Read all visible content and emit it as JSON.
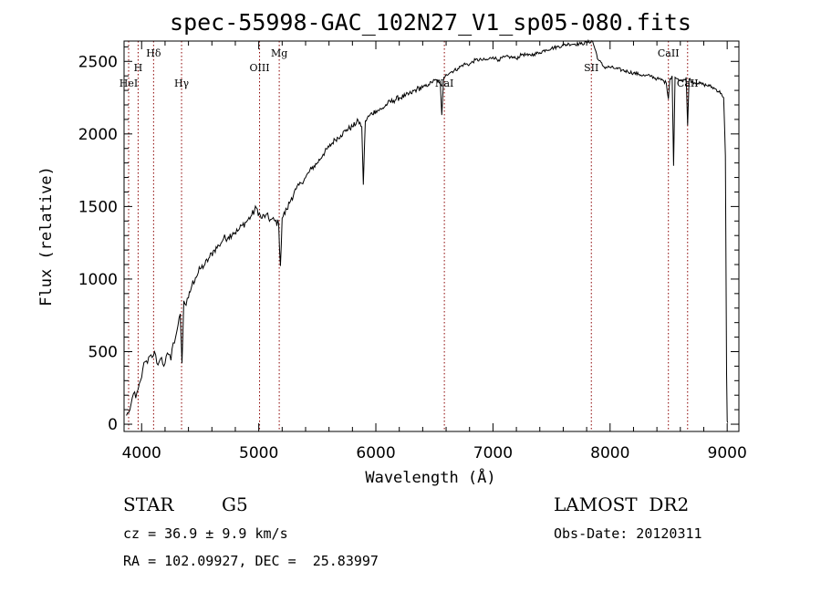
{
  "chart_data": {
    "type": "line",
    "title": "spec-55998-GAC_102N27_V1_sp05-080.fits",
    "xlabel": "Wavelength (Å)",
    "ylabel": "Flux (relative)",
    "xlim": [
      3850,
      9100
    ],
    "ylim": [
      -50,
      2640
    ],
    "x_ticks": [
      4000,
      5000,
      6000,
      7000,
      8000,
      9000
    ],
    "x_tick_labels": [
      "4000",
      "5000",
      "6000",
      "7000",
      "8000",
      "9000"
    ],
    "y_ticks": [
      0,
      500,
      1000,
      1500,
      2000,
      2500
    ],
    "y_tick_labels": [
      "0",
      "500",
      "1000",
      "1500",
      "2000",
      "2500"
    ],
    "series": [
      {
        "name": "spectrum",
        "x": [
          3870,
          3890,
          3910,
          3930,
          3950,
          3970,
          3990,
          4010,
          4030,
          4050,
          4070,
          4090,
          4110,
          4130,
          4150,
          4170,
          4190,
          4210,
          4230,
          4250,
          4270,
          4290,
          4310,
          4330,
          4345,
          4360,
          4380,
          4400,
          4430,
          4460,
          4500,
          4540,
          4580,
          4620,
          4660,
          4700,
          4740,
          4780,
          4820,
          4860,
          4900,
          4940,
          4980,
          5020,
          5060,
          5100,
          5140,
          5170,
          5185,
          5200,
          5240,
          5280,
          5320,
          5360,
          5400,
          5450,
          5500,
          5550,
          5600,
          5650,
          5700,
          5750,
          5800,
          5850,
          5880,
          5893,
          5910,
          5950,
          6000,
          6050,
          6100,
          6150,
          6200,
          6250,
          6300,
          6350,
          6400,
          6450,
          6500,
          6550,
          6563,
          6580,
          6600,
          6650,
          6700,
          6750,
          6800,
          6850,
          6900,
          6950,
          7000,
          7050,
          7100,
          7150,
          7200,
          7250,
          7300,
          7350,
          7400,
          7450,
          7500,
          7550,
          7600,
          7650,
          7700,
          7750,
          7800,
          7850,
          7900,
          7950,
          8000,
          8050,
          8100,
          8150,
          8200,
          8250,
          8300,
          8350,
          8400,
          8450,
          8480,
          8498,
          8510,
          8530,
          8542,
          8555,
          8580,
          8620,
          8650,
          8662,
          8675,
          8700,
          8750,
          8800,
          8850,
          8900,
          8950,
          8970,
          8985,
          8995,
          9000,
          9005
        ],
        "y": [
          60,
          80,
          140,
          210,
          180,
          240,
          300,
          380,
          430,
          420,
          470,
          460,
          500,
          420,
          430,
          460,
          400,
          470,
          480,
          440,
          560,
          600,
          680,
          760,
          420,
          850,
          820,
          870,
          960,
          1010,
          1070,
          1100,
          1150,
          1200,
          1230,
          1280,
          1290,
          1320,
          1330,
          1370,
          1400,
          1440,
          1490,
          1420,
          1440,
          1410,
          1400,
          1380,
          1090,
          1420,
          1480,
          1560,
          1620,
          1660,
          1700,
          1760,
          1800,
          1860,
          1910,
          1960,
          1990,
          2030,
          2050,
          2090,
          2050,
          1650,
          2090,
          2130,
          2160,
          2170,
          2210,
          2230,
          2250,
          2260,
          2280,
          2310,
          2320,
          2340,
          2370,
          2360,
          2130,
          2390,
          2410,
          2430,
          2450,
          2480,
          2480,
          2510,
          2510,
          2510,
          2530,
          2510,
          2530,
          2530,
          2520,
          2550,
          2540,
          2550,
          2560,
          2580,
          2590,
          2600,
          2610,
          2620,
          2620,
          2620,
          2630,
          2640,
          2510,
          2460,
          2460,
          2450,
          2440,
          2430,
          2420,
          2410,
          2400,
          2400,
          2380,
          2370,
          2350,
          2240,
          2380,
          2400,
          1780,
          2390,
          2380,
          2360,
          2390,
          2060,
          2380,
          2360,
          2350,
          2340,
          2330,
          2310,
          2280,
          2250,
          1850,
          350,
          20,
          10
        ]
      }
    ],
    "line_markers": [
      {
        "label": "HeI",
        "wavelength": 3889,
        "label_row": 3
      },
      {
        "label": "H",
        "wavelength": 3970,
        "label_row": 2
      },
      {
        "label": "Hδ",
        "wavelength": 4102,
        "label_row": 1
      },
      {
        "label": "Hγ",
        "wavelength": 4341,
        "label_row": 3
      },
      {
        "label": "OIII",
        "wavelength": 5007,
        "label_row": 2
      },
      {
        "label": "Mg",
        "wavelength": 5175,
        "label_row": 1
      },
      {
        "label": "NaI",
        "wavelength": 6585,
        "label_row": 3
      },
      {
        "label": "SII",
        "wavelength": 7840,
        "label_row": 2
      },
      {
        "label": "CaII",
        "wavelength": 8498,
        "label_row": 1
      },
      {
        "label": "CaII",
        "wavelength": 8662,
        "label_row": 3
      }
    ]
  },
  "info": {
    "object_class": "STAR",
    "subclass": "G5",
    "survey": "LAMOST  DR2",
    "redshift": "cz = 36.9 ± 9.9 km/s",
    "obs_date": "Obs-Date: 20120311",
    "coords": "RA = 102.09927, DEC =  25.83997"
  },
  "colors": {
    "spectrum": "#000000",
    "marker_lines": "#8b0000",
    "axes": "#000000"
  }
}
